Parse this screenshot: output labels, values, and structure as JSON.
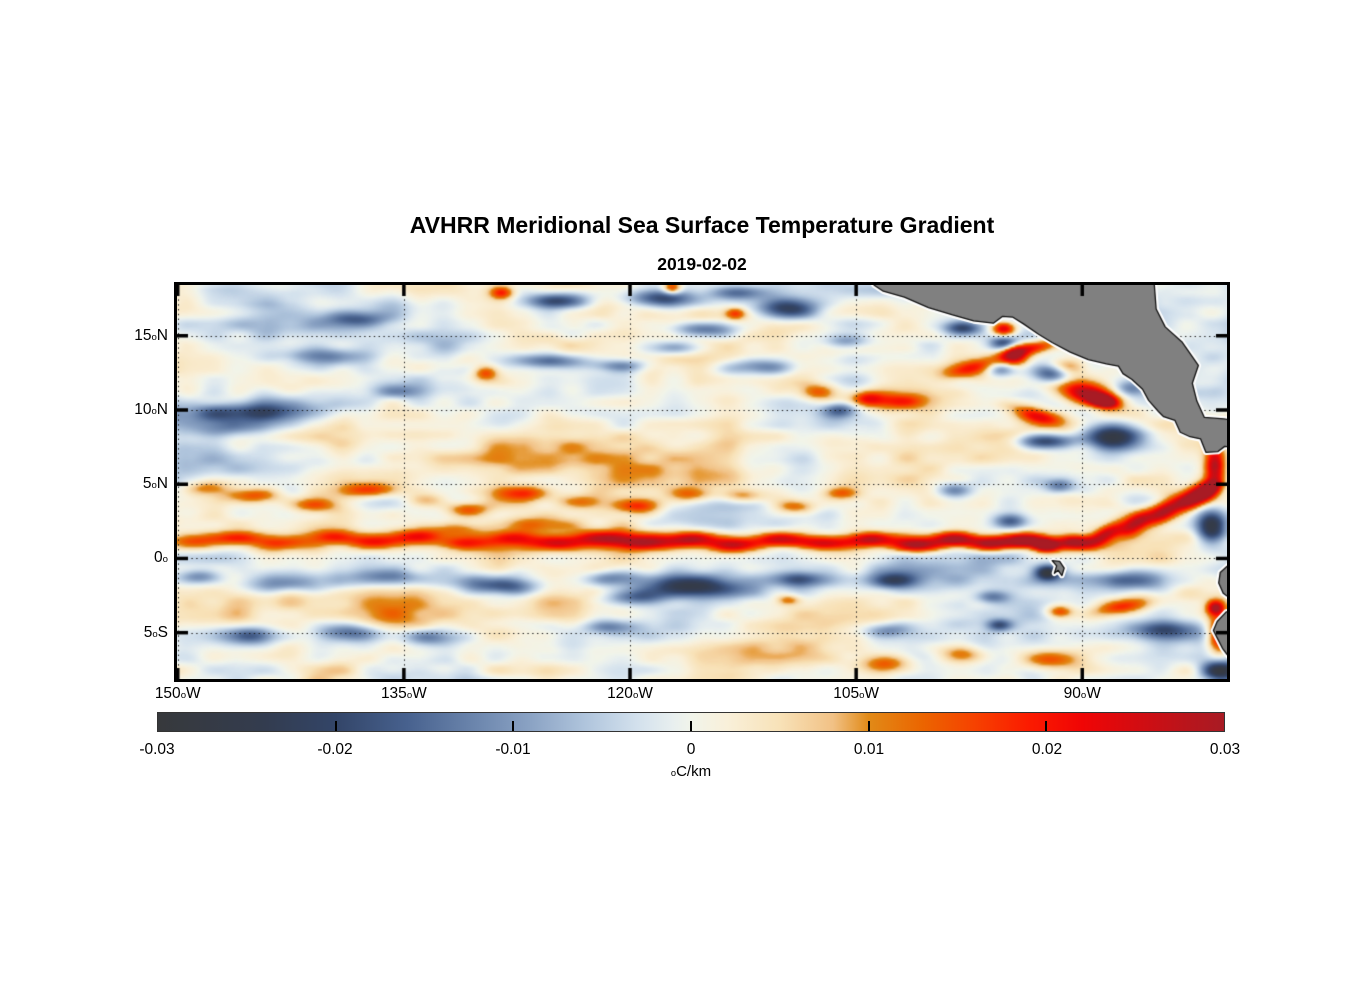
{
  "chart": {
    "title": "AVHRR Meridional Sea Surface Temperature Gradient",
    "date": "2019-02-02"
  },
  "chart_data": {
    "type": "heatmap",
    "title": "AVHRR Meridional Sea Surface Temperature Gradient",
    "subtitle_date": "2019-02-02",
    "value_units": "degC/km",
    "grid": "dotted",
    "geo": {
      "lon_min": -150.05,
      "lon_max": -80.4,
      "lat_min": -8.12,
      "lat_max": 18.42
    },
    "x_axis": {
      "sup": "o",
      "ticks": [
        {
          "num": "150",
          "suf": "W",
          "lon": -150
        },
        {
          "num": "135",
          "suf": "W",
          "lon": -135
        },
        {
          "num": "120",
          "suf": "W",
          "lon": -120
        },
        {
          "num": "105",
          "suf": "W",
          "lon": -105
        },
        {
          "num": "90",
          "suf": "W",
          "lon": -90
        }
      ]
    },
    "y_axis": {
      "sup": "o",
      "ticks": [
        {
          "num": "15",
          "suf": "N",
          "lat": 15
        },
        {
          "num": "10",
          "suf": "N",
          "lat": 10
        },
        {
          "num": "5",
          "suf": "N",
          "lat": 5
        },
        {
          "num": "0",
          "suf": "",
          "lat": 0
        },
        {
          "num": "5",
          "suf": "S",
          "lat": -5
        }
      ]
    },
    "colorbar": {
      "range": [
        -0.03,
        0.03
      ],
      "ticks": [
        {
          "label": "-0.03",
          "v": -0.03
        },
        {
          "label": "-0.02",
          "v": -0.02
        },
        {
          "label": "-0.01",
          "v": -0.01
        },
        {
          "label": "0",
          "v": 0
        },
        {
          "label": "0.01",
          "v": 0.01
        },
        {
          "label": "0.02",
          "v": 0.02
        },
        {
          "label": "0.03",
          "v": 0.03
        }
      ],
      "unit_sup": "o",
      "unit_text": "C/km",
      "stops": [
        [
          -0.03,
          "#37393c"
        ],
        [
          -0.024,
          "#333c4f"
        ],
        [
          -0.02,
          "#334568"
        ],
        [
          -0.016,
          "#47618e"
        ],
        [
          -0.012,
          "#6d87ae"
        ],
        [
          -0.009,
          "#8ba3c4"
        ],
        [
          -0.006,
          "#afc4dc"
        ],
        [
          -0.003,
          "#d3e1ed"
        ],
        [
          -0.001,
          "#e8efef"
        ],
        [
          0,
          "#f1f4ea"
        ],
        [
          0.002,
          "#f9f0da"
        ],
        [
          0.005,
          "#f8e2b8"
        ],
        [
          0.008,
          "#f1c185"
        ],
        [
          0.01,
          "#e18a17"
        ],
        [
          0.013,
          "#eb6500"
        ],
        [
          0.016,
          "#f64100"
        ],
        [
          0.019,
          "#fb1b00"
        ],
        [
          0.022,
          "#f00505"
        ],
        [
          0.025,
          "#d40c11"
        ],
        [
          0.028,
          "#b8151c"
        ],
        [
          0.03,
          "#a81b24"
        ]
      ]
    },
    "noise": {
      "octaves": [
        [
          9,
          3,
          0.0036
        ],
        [
          3.8,
          1.3,
          0.0042
        ],
        [
          1.7,
          0.75,
          0.0026
        ],
        [
          22,
          8,
          0.002
        ]
      ]
    },
    "features": [
      [
        -145,
        9.8,
        4.5,
        0.65,
        -0.019
      ],
      [
        -146.5,
        8.8,
        2.5,
        0.6,
        -0.011
      ],
      [
        -140.5,
        13.6,
        2.8,
        0.55,
        -0.013
      ],
      [
        -138,
        16.1,
        2.2,
        0.5,
        -0.012
      ],
      [
        -124.7,
        17.35,
        2.2,
        0.55,
        -0.022
      ],
      [
        -118,
        17.5,
        2.2,
        0.6,
        -0.021
      ],
      [
        -112.8,
        17.9,
        2,
        0.5,
        -0.016
      ],
      [
        -109.5,
        16.8,
        2,
        0.7,
        -0.022
      ],
      [
        -115,
        15.4,
        2.2,
        0.55,
        -0.019
      ],
      [
        -117,
        14.2,
        2,
        0.55,
        -0.013
      ],
      [
        -111.5,
        12.9,
        2.2,
        0.55,
        -0.015
      ],
      [
        -125,
        13.3,
        2.4,
        0.5,
        -0.015
      ],
      [
        -120.5,
        13,
        1.8,
        0.45,
        -0.012
      ],
      [
        -135.5,
        11.2,
        1.8,
        0.5,
        -0.01
      ],
      [
        -106,
        10,
        1.1,
        0.5,
        -0.014
      ],
      [
        -105.6,
        14.6,
        1.5,
        0.5,
        -0.013
      ],
      [
        -128.5,
        17.9,
        0.8,
        0.45,
        0.018
      ],
      [
        -117.2,
        18.2,
        0.6,
        0.4,
        0.02
      ],
      [
        -129.6,
        12.5,
        0.8,
        0.5,
        0.015
      ],
      [
        -113,
        16.5,
        0.7,
        0.4,
        0.015
      ],
      [
        -107.5,
        11.2,
        1.3,
        0.55,
        0.016
      ],
      [
        -104.3,
        10.8,
        1,
        0.5,
        0.013
      ],
      [
        -138,
        15.5,
        9,
        2.5,
        -0.0035
      ],
      [
        -146,
        11.5,
        5,
        2,
        -0.003
      ],
      [
        -120,
        7,
        12,
        2,
        0.004
      ],
      [
        -100,
        7,
        8,
        2,
        0.0045
      ],
      [
        -135,
        7.5,
        8,
        1.8,
        0.0035
      ],
      [
        -95.2,
        15.45,
        0.8,
        0.5,
        0.029
      ],
      [
        -95.1,
        14.5,
        0.95,
        0.5,
        -0.02
      ],
      [
        -97.9,
        15.5,
        1.2,
        0.45,
        -0.017
      ],
      [
        -97,
        12.9,
        2.4,
        0.6,
        0.019,
        15
      ],
      [
        -94.5,
        13.8,
        0.9,
        0.8,
        0.026
      ],
      [
        -93.2,
        14.2,
        1.6,
        0.45,
        0.02,
        10
      ],
      [
        -92,
        12.5,
        1.2,
        0.65,
        -0.021
      ],
      [
        -95.5,
        12.8,
        1,
        0.5,
        -0.015
      ],
      [
        -102.5,
        10.6,
        2.8,
        0.6,
        0.017
      ],
      [
        -93,
        9.6,
        1.8,
        0.55,
        0.022,
        -15
      ],
      [
        -89.5,
        11,
        2.2,
        0.75,
        0.029,
        -12
      ],
      [
        -88.6,
        10.6,
        0.9,
        0.4,
        0.034,
        -12
      ],
      [
        -92.5,
        7.9,
        1.9,
        0.5,
        -0.023
      ],
      [
        -88,
        8.2,
        1.8,
        0.85,
        -0.028
      ],
      [
        -91.2,
        12.9,
        1.3,
        0.6,
        0.02
      ],
      [
        -86.8,
        11.5,
        1.2,
        0.6,
        -0.014
      ],
      [
        -81.2,
        6.3,
        0.65,
        1.3,
        0.027
      ],
      [
        -81.6,
        4.6,
        0.9,
        0.55,
        0.031,
        35
      ],
      [
        -81.4,
        2.2,
        1,
        1.1,
        -0.028
      ],
      [
        -86.5,
        -1.5,
        2,
        0.6,
        -0.014
      ],
      [
        -87.5,
        -3.3,
        2,
        0.55,
        0.019,
        10
      ],
      [
        -81.15,
        -3.3,
        0.6,
        0.5,
        0.028
      ],
      [
        -80.9,
        -5.2,
        0.8,
        1.3,
        0.029
      ],
      [
        -80.9,
        -7.6,
        1.2,
        0.75,
        -0.027
      ],
      [
        -84.5,
        -4.9,
        2.4,
        0.65,
        -0.016
      ],
      [
        -92.4,
        0.85,
        0.85,
        0.45,
        0.033
      ],
      [
        -92.3,
        -0.95,
        0.85,
        0.5,
        -0.026
      ],
      [
        -91.5,
        -3.6,
        0.9,
        0.45,
        0.02
      ],
      [
        -94.8,
        2.5,
        1.1,
        0.5,
        -0.016
      ],
      [
        -98.5,
        4.6,
        1.2,
        0.5,
        -0.012
      ],
      [
        -91.5,
        4.9,
        1,
        0.5,
        -0.014
      ],
      [
        -149,
        1.1,
        1.8,
        0.55,
        0.013
      ],
      [
        -146,
        1.4,
        1.8,
        0.5,
        0.015
      ],
      [
        -143,
        1,
        1.8,
        0.5,
        0.014
      ],
      [
        -140,
        1.5,
        1.8,
        0.5,
        0.016
      ],
      [
        -137,
        1.1,
        1.8,
        0.5,
        0.015
      ],
      [
        -134,
        1.5,
        1.8,
        0.5,
        0.017
      ],
      [
        -131.5,
        2,
        2,
        0.5,
        0.012
      ],
      [
        -131,
        1,
        1.8,
        0.5,
        0.016
      ],
      [
        -128,
        1.4,
        1.8,
        0.5,
        0.018
      ],
      [
        -126,
        2.3,
        2.3,
        0.55,
        0.012
      ],
      [
        -125,
        1,
        1.8,
        0.5,
        0.018
      ],
      [
        -122,
        1.4,
        1.8,
        0.5,
        0.019
      ],
      [
        -119,
        1,
        1.8,
        0.5,
        0.02
      ],
      [
        -116,
        1.3,
        1.8,
        0.5,
        0.02
      ],
      [
        -113,
        0.9,
        1.8,
        0.5,
        0.021
      ],
      [
        -110,
        1.3,
        1.8,
        0.5,
        0.022
      ],
      [
        -107,
        1,
        1.8,
        0.5,
        0.023
      ],
      [
        -104,
        1.3,
        1.6,
        0.5,
        0.025
      ],
      [
        -101,
        0.9,
        1.6,
        0.5,
        0.026
      ],
      [
        -98.5,
        1.3,
        1.5,
        0.5,
        0.027
      ],
      [
        -96,
        1,
        1.5,
        0.5,
        0.028
      ],
      [
        -93.8,
        1.2,
        1.3,
        0.5,
        0.03
      ],
      [
        -90.5,
        1.1,
        1.2,
        0.5,
        0.028
      ],
      [
        -88.5,
        1.6,
        1.3,
        0.55,
        0.026,
        30
      ],
      [
        -86.5,
        2.3,
        1.3,
        0.6,
        0.025,
        32
      ],
      [
        -84.5,
        3.2,
        1.3,
        0.65,
        0.026,
        33
      ],
      [
        -82.7,
        4.1,
        1.2,
        0.65,
        0.027,
        35
      ],
      [
        -148,
        4.7,
        1.5,
        0.5,
        0.013
      ],
      [
        -145,
        4.2,
        2,
        0.55,
        0.016
      ],
      [
        -141,
        3.6,
        1.5,
        0.5,
        0.013
      ],
      [
        -137.3,
        4.6,
        1.8,
        0.5,
        0.017
      ],
      [
        -133.5,
        3.9,
        1.5,
        0.5,
        0.012
      ],
      [
        -130.8,
        3.3,
        1.5,
        0.5,
        0.015
      ],
      [
        -127,
        4.4,
        1.8,
        0.5,
        0.016
      ],
      [
        -123.5,
        3.8,
        1.5,
        0.5,
        0.013
      ],
      [
        -119.5,
        3.5,
        1.5,
        0.5,
        0.015
      ],
      [
        -116,
        4.3,
        1.5,
        0.5,
        0.013
      ],
      [
        -112.5,
        4.2,
        1.5,
        0.5,
        0.014
      ],
      [
        -109,
        3.5,
        1.2,
        0.45,
        0.013
      ],
      [
        -106,
        4.4,
        1.2,
        0.45,
        0.014
      ],
      [
        -148.5,
        -1.2,
        1.5,
        0.5,
        -0.013
      ],
      [
        -143,
        -1.7,
        2.8,
        0.6,
        -0.012
      ],
      [
        -136,
        -1.2,
        2,
        0.5,
        -0.009
      ],
      [
        -128.5,
        -1.8,
        2.3,
        0.65,
        -0.02
      ],
      [
        -121,
        -1.3,
        1.8,
        0.5,
        -0.011
      ],
      [
        -116,
        -1.9,
        3.2,
        0.75,
        -0.021
      ],
      [
        -109,
        -1.4,
        1.8,
        0.5,
        -0.013
      ],
      [
        -102.5,
        -1.5,
        1.5,
        0.5,
        -0.016
      ],
      [
        -96,
        -2.6,
        1.2,
        0.45,
        -0.014
      ],
      [
        -95.5,
        -4.5,
        0.8,
        0.4,
        -0.015
      ],
      [
        -119.5,
        -2.6,
        2,
        0.5,
        -0.013
      ],
      [
        -145,
        -5.2,
        1.8,
        0.6,
        -0.019
      ],
      [
        -138.8,
        -5,
        2,
        0.65,
        -0.018
      ],
      [
        -133,
        -5.3,
        1.8,
        0.55,
        -0.014
      ],
      [
        -121,
        -4.6,
        1.8,
        0.5,
        -0.012
      ],
      [
        -103,
        -4.8,
        1.5,
        0.5,
        -0.011
      ],
      [
        -103,
        -7,
        1.6,
        0.6,
        0.014
      ],
      [
        -98,
        -6.5,
        1.6,
        0.6,
        0.015
      ],
      [
        -92,
        -6.8,
        2,
        0.6,
        0.016
      ],
      [
        -110,
        -6,
        10,
        2,
        0.004
      ],
      [
        -88,
        -5.8,
        4,
        1.5,
        0.005
      ],
      [
        -109.5,
        -2.8,
        0.8,
        0.35,
        0.012
      ],
      [
        -135,
        -3.5,
        8,
        1.5,
        0.0035
      ],
      [
        -147,
        -6.5,
        4,
        1.5,
        -0.003
      ],
      [
        -115,
        1.2,
        35,
        0.7,
        0.007
      ],
      [
        -120,
        -1.6,
        35,
        0.9,
        -0.004
      ]
    ],
    "land": {
      "color": "#808080",
      "coast_outline": "#111111",
      "coast_halo": "#ffffff",
      "polygons": [
        [
          [
            -104.5,
            19.5
          ],
          [
            -103.8,
            18.4
          ],
          [
            -103.2,
            18.0
          ],
          [
            -101.8,
            17.6
          ],
          [
            -100.2,
            16.9
          ],
          [
            -98.6,
            16.4
          ],
          [
            -97.2,
            16.0
          ],
          [
            -95.9,
            15.85
          ],
          [
            -95.3,
            16.3
          ],
          [
            -94.6,
            16.25
          ],
          [
            -93.9,
            15.8
          ],
          [
            -92.9,
            15.1
          ],
          [
            -92.0,
            14.55
          ],
          [
            -90.8,
            13.9
          ],
          [
            -89.6,
            13.4
          ],
          [
            -88.4,
            13.1
          ],
          [
            -87.6,
            12.95
          ],
          [
            -87.3,
            12.45
          ],
          [
            -86.7,
            12.05
          ],
          [
            -86.0,
            11.4
          ],
          [
            -85.6,
            10.65
          ],
          [
            -84.95,
            9.9
          ],
          [
            -84.6,
            9.55
          ],
          [
            -83.85,
            9.3
          ],
          [
            -83.5,
            8.5
          ],
          [
            -82.85,
            8.2
          ],
          [
            -82.15,
            8.05
          ],
          [
            -81.8,
            7.15
          ],
          [
            -81.0,
            7.2
          ],
          [
            -80.55,
            7.55
          ],
          [
            -80.2,
            7.5
          ],
          [
            -79.4,
            7.8
          ],
          [
            -79.4,
            9.2
          ],
          [
            -80.6,
            9.4
          ],
          [
            -81.9,
            9.5
          ],
          [
            -82.4,
            10.6
          ],
          [
            -82.7,
            11.8
          ],
          [
            -82.3,
            13.0
          ],
          [
            -83.4,
            14.6
          ],
          [
            -84.5,
            15.6
          ],
          [
            -85.1,
            16.8
          ],
          [
            -85.3,
            19.5
          ]
        ],
        [
          [
            -79.4,
            -0.15
          ],
          [
            -80.3,
            -0.45
          ],
          [
            -80.85,
            -0.95
          ],
          [
            -80.95,
            -1.65
          ],
          [
            -80.65,
            -2.35
          ],
          [
            -80.3,
            -2.6
          ],
          [
            -79.4,
            -2.85
          ]
        ],
        [
          [
            -79.4,
            -3.35
          ],
          [
            -80.45,
            -3.6
          ],
          [
            -81.05,
            -4.25
          ],
          [
            -81.3,
            -4.85
          ],
          [
            -81.0,
            -5.45
          ],
          [
            -80.7,
            -6.05
          ],
          [
            -80.3,
            -6.6
          ],
          [
            -79.4,
            -7.1
          ]
        ],
        [
          [
            -92.0,
            -0.15
          ],
          [
            -91.5,
            -0.2
          ],
          [
            -91.2,
            -0.65
          ],
          [
            -91.35,
            -1.15
          ],
          [
            -91.6,
            -0.8
          ],
          [
            -91.85,
            -1.0
          ],
          [
            -91.7,
            -0.5
          ]
        ]
      ]
    }
  }
}
